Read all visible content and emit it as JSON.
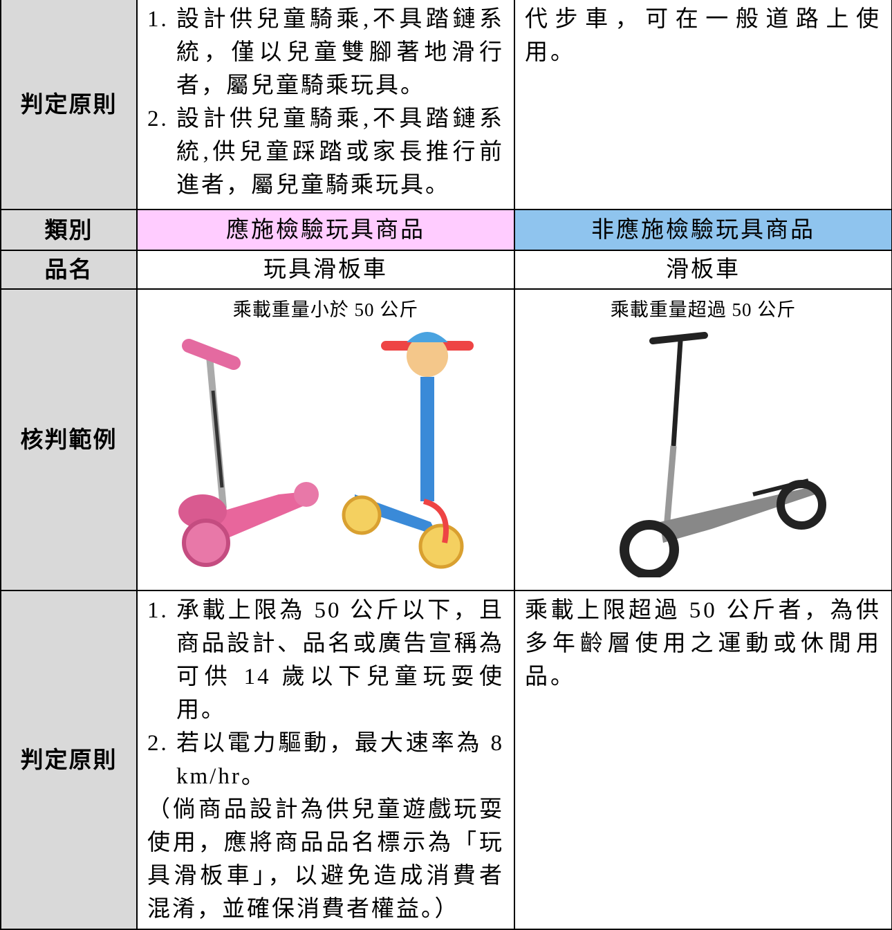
{
  "table": {
    "rows": [
      {
        "label": "判定原則",
        "cells": [
          {
            "items": [
              {
                "marker": "1.",
                "text": "設計供兒童騎乘,不具踏鏈系統，僅以兒童雙腳著地滑行者，屬兒童騎乘玩具。"
              },
              {
                "marker": "2.",
                "text": "設計供兒童騎乘,不具踏鏈系統,供兒童踩踏或家長推行前進者，屬兒童騎乘玩具。"
              }
            ]
          },
          {
            "text": "代步車，可在一般道路上使用。"
          }
        ]
      },
      {
        "label": "類別",
        "cells": [
          {
            "text": "應施檢驗玩具商品"
          },
          {
            "text": "非應施檢驗玩具商品"
          }
        ]
      },
      {
        "label": "品名",
        "cells": [
          {
            "text": "玩具滑板車"
          },
          {
            "text": "滑板車"
          }
        ]
      },
      {
        "label": "核判範例",
        "cells": [
          {
            "caption": "乘載重量小於 50 公斤"
          },
          {
            "caption": "乘載重量超過 50 公斤"
          }
        ]
      },
      {
        "label": "判定原則",
        "cells": [
          {
            "items": [
              {
                "marker": "1.",
                "text": "承載上限為 50 公斤以下，且商品設計、品名或廣告宣稱為可供 14 歲以下兒童玩耍使用。"
              },
              {
                "marker": "2.",
                "text": "若以電力驅動，最大速率為 8 km/hr。"
              }
            ],
            "note": "（倘商品設計為供兒童遊戲玩耍使用，應將商品品名標示為「玩具滑板車」，以避免造成消費者混淆，並確保消費者權益。）"
          },
          {
            "text": "乘載上限超過 50 公斤者，為供多年齡層使用之運動或休閒用品。"
          }
        ]
      }
    ]
  }
}
